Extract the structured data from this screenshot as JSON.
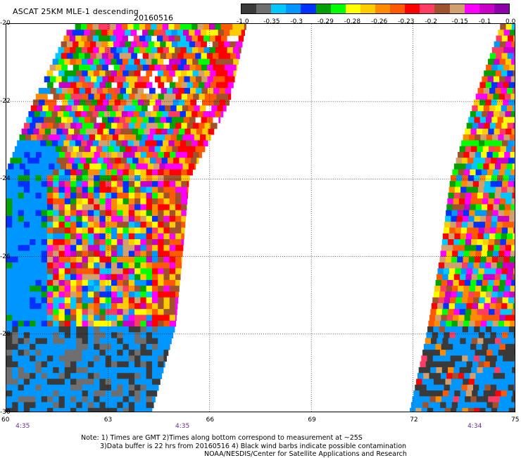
{
  "header": {
    "title": "ASCAT 25KM MLE-1 descending",
    "date": "20160516"
  },
  "colorbar": {
    "colors": [
      "#3a3a3a",
      "#6f6f6f",
      "#00c8ff",
      "#0096ff",
      "#0032ff",
      "#00a000",
      "#00ff00",
      "#ffff00",
      "#ffcc00",
      "#ff8c00",
      "#ff5a00",
      "#ff0000",
      "#ff3c64",
      "#a0522d",
      "#d2a06e",
      "#ff00ff",
      "#c800c8",
      "#8c00aa"
    ],
    "labels": [
      "-1.0",
      "-0.35",
      "-0.3",
      "-0.29",
      "-0.28",
      "-0.26",
      "-0.23",
      "-0.2",
      "-0.15",
      "-0.1",
      "0.0"
    ]
  },
  "map": {
    "lat_labels": [
      "-20",
      "-22",
      "-24",
      "-26",
      "-28",
      "-30"
    ],
    "lon_labels": [
      "60",
      "63",
      "66",
      "69",
      "72",
      "75"
    ],
    "lat_range": [
      -30,
      -20
    ],
    "lon_range": [
      60,
      75
    ],
    "grid": true,
    "time_labels": [
      {
        "text": "4:35",
        "lon": 60.5
      },
      {
        "text": "4:35",
        "lon": 65.2
      },
      {
        "text": "4:34",
        "lon": 73.8
      }
    ],
    "swaths": [
      {
        "description": "left",
        "edges": [
          [
            -20,
            61.9,
            67.1
          ],
          [
            -22,
            60.8,
            66.6
          ],
          [
            -24,
            59.9,
            65.4
          ],
          [
            -26,
            59.9,
            65.2
          ],
          [
            -27.8,
            59.9,
            65.0
          ],
          [
            -30,
            59.9,
            64.3
          ]
        ]
      },
      {
        "description": "right",
        "edges": [
          [
            -20,
            74.6,
            75.0
          ],
          [
            -22,
            73.8,
            75.0
          ],
          [
            -24,
            73.1,
            75.0
          ],
          [
            -26,
            72.8,
            75.0
          ],
          [
            -28,
            72.4,
            75.0
          ],
          [
            -30,
            71.9,
            75.0
          ]
        ]
      }
    ]
  },
  "footer": {
    "note1": "Note: 1) Times are GMT 2)Times along bottom correspond to measurement at ~25S",
    "note2": "3)Data buffer is 22 hrs from 20160516 4) Black wind barbs indicate possible contamination",
    "note3": "NOAA/NESDIS/Center for Satellite Applications and Research"
  }
}
